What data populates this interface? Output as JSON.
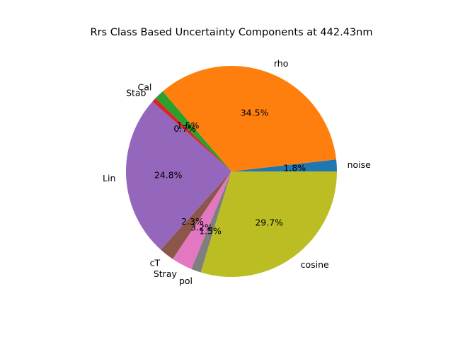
{
  "chart_data": {
    "type": "pie",
    "title": "Rrs Class Based Uncertainty Components at 442.43nm",
    "start_angle_deg": 0,
    "direction": "counterclockwise",
    "slices": [
      {
        "label": "noise",
        "percent": 1.8,
        "percent_label": "1.8%",
        "color": "#1f77b4"
      },
      {
        "label": "rho",
        "percent": 34.5,
        "percent_label": "34.5%",
        "color": "#ff7f0e"
      },
      {
        "label": "Cal",
        "percent": 1.5,
        "percent_label": "1.5%",
        "color": "#2ca02c"
      },
      {
        "label": "Stab",
        "percent": 0.7,
        "percent_label": "0.7%",
        "color": "#d62728"
      },
      {
        "label": "Lin",
        "percent": 24.8,
        "percent_label": "24.8%",
        "color": "#9467bd"
      },
      {
        "label": "cT",
        "percent": 2.3,
        "percent_label": "2.3%",
        "color": "#8c564b"
      },
      {
        "label": "Stray",
        "percent": 3.2,
        "percent_label": "3.2%",
        "color": "#e377c2"
      },
      {
        "label": "pol",
        "percent": 1.5,
        "percent_label": "1.5%",
        "color": "#7f7f7f"
      },
      {
        "label": "cosine",
        "percent": 29.7,
        "percent_label": "29.7%",
        "color": "#bcbd22"
      }
    ]
  }
}
